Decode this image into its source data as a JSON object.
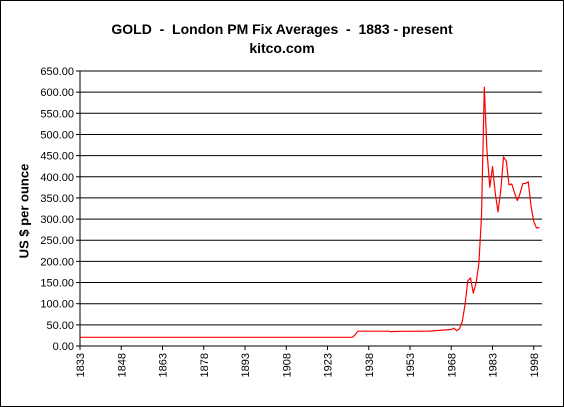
{
  "chart_data": {
    "type": "line",
    "title": "GOLD  -  London PM Fix Averages  -  1883 - present",
    "subtitle": "kitco.com",
    "xlabel": "",
    "ylabel": "US $ per ounce",
    "xlim": [
      1833,
      2001
    ],
    "ylim": [
      0,
      650
    ],
    "yticks": [
      "0.00",
      "50.00",
      "100.00",
      "150.00",
      "200.00",
      "250.00",
      "300.00",
      "350.00",
      "400.00",
      "450.00",
      "500.00",
      "550.00",
      "600.00",
      "650.00"
    ],
    "xticks": [
      "1833",
      "1848",
      "1863",
      "1878",
      "1893",
      "1908",
      "1923",
      "1938",
      "1953",
      "1968",
      "1983",
      "1998"
    ],
    "grid": true,
    "series": [
      {
        "color": "#ff0000",
        "x": [
          1833,
          1900,
          1932,
          1933,
          1934,
          1945,
          1946,
          1950,
          1960,
          1968,
          1969,
          1970,
          1971,
          1972,
          1973,
          1974,
          1975,
          1976,
          1977,
          1978,
          1979,
          1980,
          1981,
          1982,
          1983,
          1984,
          1985,
          1986,
          1987,
          1988,
          1989,
          1990,
          1991,
          1992,
          1993,
          1994,
          1995,
          1996,
          1997,
          1998,
          1999,
          2000
        ],
        "y": [
          20.67,
          20.67,
          20.67,
          26,
          35,
          35,
          34,
          34.7,
          35.3,
          39,
          42,
          36,
          41,
          58.4,
          97.3,
          154,
          161,
          125,
          148,
          193,
          306,
          612,
          460,
          375,
          424,
          361,
          317,
          368,
          447,
          437,
          381,
          383,
          362,
          344,
          360,
          384,
          384,
          388,
          331,
          294,
          279,
          280
        ]
      }
    ]
  }
}
